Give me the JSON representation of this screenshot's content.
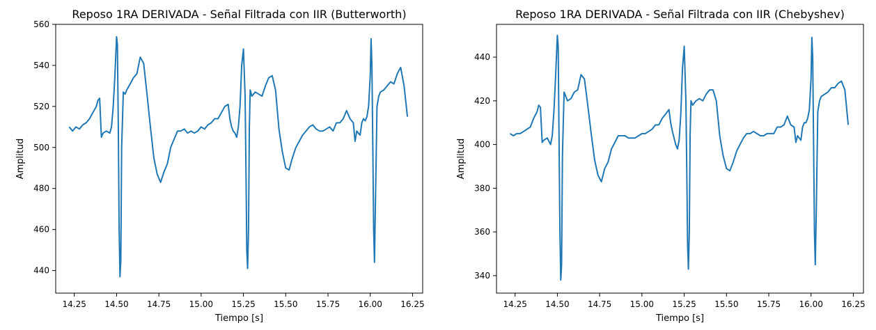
{
  "chart_data": [
    {
      "type": "line",
      "title": "Reposo 1RA DERIVADA - Señal Filtrada con IIR (Butterworth)",
      "xlabel": "Tiempo [s]",
      "ylabel": "Amplitud",
      "xlim": [
        14.14,
        16.31
      ],
      "ylim": [
        429,
        560
      ],
      "xticks": [
        "14.25",
        "14.50",
        "14.75",
        "15.00",
        "15.25",
        "15.50",
        "15.75",
        "16.00",
        "16.25"
      ],
      "yticks": [
        "440",
        "460",
        "480",
        "500",
        "520",
        "540",
        "560"
      ],
      "line_color": "#1f77b4",
      "series": [
        {
          "name": "Butterworth",
          "x": [
            14.22,
            14.24,
            14.26,
            14.28,
            14.3,
            14.32,
            14.34,
            14.36,
            14.38,
            14.39,
            14.4,
            14.41,
            14.42,
            14.44,
            14.46,
            14.47,
            14.48,
            14.49,
            14.5,
            14.505,
            14.51,
            14.515,
            14.52,
            14.525,
            14.53,
            14.54,
            14.55,
            14.56,
            14.58,
            14.6,
            14.62,
            14.64,
            14.66,
            14.68,
            14.7,
            14.72,
            14.74,
            14.76,
            14.78,
            14.8,
            14.82,
            14.84,
            14.86,
            14.88,
            14.9,
            14.92,
            14.94,
            14.96,
            14.98,
            15.0,
            15.02,
            15.04,
            15.06,
            15.08,
            15.1,
            15.12,
            15.14,
            15.16,
            15.17,
            15.18,
            15.19,
            15.2,
            15.21,
            15.22,
            15.23,
            15.24,
            15.25,
            15.26,
            15.265,
            15.27,
            15.275,
            15.28,
            15.285,
            15.29,
            15.3,
            15.31,
            15.32,
            15.34,
            15.36,
            15.38,
            15.4,
            15.42,
            15.44,
            15.46,
            15.48,
            15.5,
            15.52,
            15.54,
            15.56,
            15.58,
            15.6,
            15.62,
            15.64,
            15.66,
            15.68,
            15.7,
            15.72,
            15.74,
            15.76,
            15.78,
            15.8,
            15.82,
            15.84,
            15.86,
            15.88,
            15.9,
            15.91,
            15.92,
            15.93,
            15.94,
            15.95,
            15.96,
            15.97,
            15.98,
            15.99,
            16.0,
            16.005,
            16.01,
            16.015,
            16.02,
            16.025,
            16.03,
            16.04,
            16.05,
            16.06,
            16.08,
            16.1,
            16.12,
            16.14,
            16.16,
            16.18,
            16.2,
            16.22
          ],
          "y": [
            510,
            508,
            510,
            509,
            511,
            512,
            514,
            517,
            520,
            523,
            524,
            505,
            507,
            508,
            507,
            510,
            520,
            535,
            554,
            550,
            510,
            460,
            437,
            445,
            500,
            527,
            526,
            528,
            531,
            534,
            536,
            544,
            541,
            526,
            510,
            495,
            487,
            483,
            488,
            492,
            500,
            504,
            508,
            508,
            509,
            507,
            508,
            507,
            508,
            510,
            509,
            511,
            512,
            514,
            514,
            517,
            520,
            521,
            514,
            510,
            508,
            507,
            505,
            510,
            520,
            540,
            548,
            525,
            490,
            450,
            441,
            460,
            510,
            528,
            525,
            526,
            527,
            526,
            525,
            530,
            534,
            535,
            528,
            509,
            498,
            490,
            489,
            495,
            500,
            503,
            506,
            508,
            510,
            511,
            509,
            508,
            508,
            509,
            510,
            508,
            512,
            512,
            514,
            518,
            514,
            512,
            503,
            508,
            507,
            506,
            512,
            514,
            513,
            515,
            520,
            535,
            553,
            540,
            500,
            460,
            444,
            470,
            520,
            525,
            527,
            528,
            530,
            532,
            531,
            536,
            539,
            530,
            515
          ]
        }
      ]
    },
    {
      "type": "line",
      "title": "Reposo 1RA DERIVADA - Señal Filtrada con IIR (Chebyshev)",
      "xlabel": "Tiempo [s]",
      "ylabel": "Amplitud",
      "xlim": [
        14.14,
        16.31
      ],
      "ylim": [
        332,
        455
      ],
      "xticks": [
        "14.25",
        "14.50",
        "14.75",
        "15.00",
        "15.25",
        "15.50",
        "15.75",
        "16.00",
        "16.25"
      ],
      "yticks": [
        "340",
        "360",
        "380",
        "400",
        "420",
        "440"
      ],
      "line_color": "#1f77b4",
      "series": [
        {
          "name": "Chebyshev",
          "x": [
            14.22,
            14.24,
            14.26,
            14.28,
            14.3,
            14.32,
            14.34,
            14.36,
            14.38,
            14.39,
            14.4,
            14.41,
            14.42,
            14.44,
            14.46,
            14.47,
            14.48,
            14.49,
            14.5,
            14.505,
            14.51,
            14.515,
            14.52,
            14.525,
            14.53,
            14.54,
            14.55,
            14.56,
            14.58,
            14.6,
            14.62,
            14.64,
            14.66,
            14.68,
            14.7,
            14.72,
            14.74,
            14.76,
            14.78,
            14.8,
            14.82,
            14.84,
            14.86,
            14.88,
            14.9,
            14.92,
            14.94,
            14.96,
            14.98,
            15.0,
            15.02,
            15.04,
            15.06,
            15.08,
            15.1,
            15.12,
            15.14,
            15.16,
            15.17,
            15.18,
            15.19,
            15.2,
            15.21,
            15.22,
            15.23,
            15.24,
            15.25,
            15.26,
            15.265,
            15.27,
            15.275,
            15.28,
            15.285,
            15.29,
            15.3,
            15.31,
            15.32,
            15.34,
            15.36,
            15.38,
            15.4,
            15.42,
            15.44,
            15.46,
            15.48,
            15.5,
            15.52,
            15.54,
            15.56,
            15.58,
            15.6,
            15.62,
            15.64,
            15.66,
            15.68,
            15.7,
            15.72,
            15.74,
            15.76,
            15.78,
            15.8,
            15.82,
            15.84,
            15.86,
            15.88,
            15.9,
            15.91,
            15.92,
            15.93,
            15.94,
            15.95,
            15.96,
            15.97,
            15.98,
            15.99,
            16.0,
            16.005,
            16.01,
            16.015,
            16.02,
            16.025,
            16.03,
            16.04,
            16.05,
            16.06,
            16.08,
            16.1,
            16.12,
            16.14,
            16.16,
            16.18,
            16.2,
            16.22
          ],
          "y": [
            405,
            404,
            405,
            405,
            406,
            407,
            408,
            412,
            415,
            418,
            417,
            401,
            402,
            403,
            400,
            404,
            416,
            432,
            450,
            445,
            400,
            360,
            338,
            345,
            395,
            424,
            422,
            420,
            421,
            424,
            425,
            432,
            430,
            418,
            405,
            393,
            386,
            383,
            389,
            392,
            398,
            401,
            404,
            404,
            404,
            403,
            403,
            403,
            404,
            405,
            405,
            406,
            407,
            409,
            409,
            412,
            414,
            416,
            410,
            406,
            403,
            400,
            398,
            402,
            414,
            435,
            445,
            420,
            390,
            355,
            343,
            360,
            405,
            420,
            418,
            419,
            420,
            421,
            420,
            423,
            425,
            425,
            420,
            404,
            395,
            389,
            388,
            392,
            397,
            400,
            403,
            405,
            405,
            406,
            405,
            404,
            404,
            405,
            405,
            405,
            408,
            408,
            409,
            413,
            409,
            408,
            401,
            404,
            403,
            402,
            408,
            410,
            410,
            412,
            416,
            430,
            449,
            440,
            400,
            360,
            345,
            365,
            415,
            420,
            422,
            423,
            424,
            426,
            426,
            428,
            429,
            425,
            409
          ]
        }
      ]
    }
  ]
}
